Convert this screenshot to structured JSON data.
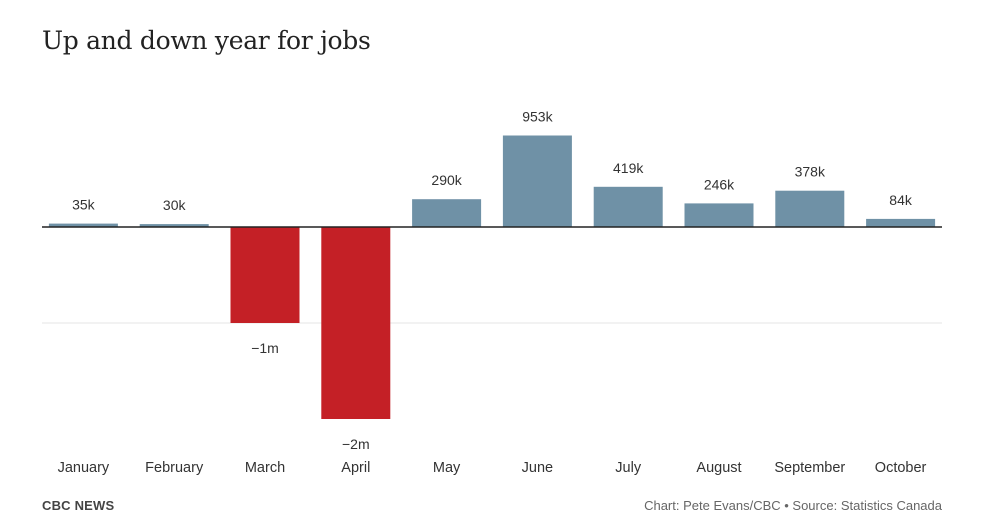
{
  "header": {
    "title": "Up and down year for jobs"
  },
  "footer": {
    "brand": "CBC NEWS",
    "credit": "Chart: Pete Evans/CBC • Source: Statistics Canada"
  },
  "colors": {
    "positive": "#6f91a6",
    "negative": "#c42026",
    "axis": "#222222",
    "grid": "#e6e6e6"
  },
  "chart_data": {
    "type": "bar",
    "title": "Up and down year for jobs",
    "xlabel": "",
    "ylabel": "",
    "ylim": [
      -2000000,
      953000
    ],
    "categories": [
      "January",
      "February",
      "March",
      "April",
      "May",
      "June",
      "July",
      "August",
      "September",
      "October"
    ],
    "values": [
      35000,
      30000,
      -1000000,
      -2000000,
      290000,
      953000,
      419000,
      246000,
      378000,
      84000
    ],
    "data_labels": [
      "35k",
      "30k",
      "−1m",
      "−2m",
      "290k",
      "953k",
      "419k",
      "246k",
      "378k",
      "84k"
    ],
    "grid": true,
    "legend": "none"
  }
}
